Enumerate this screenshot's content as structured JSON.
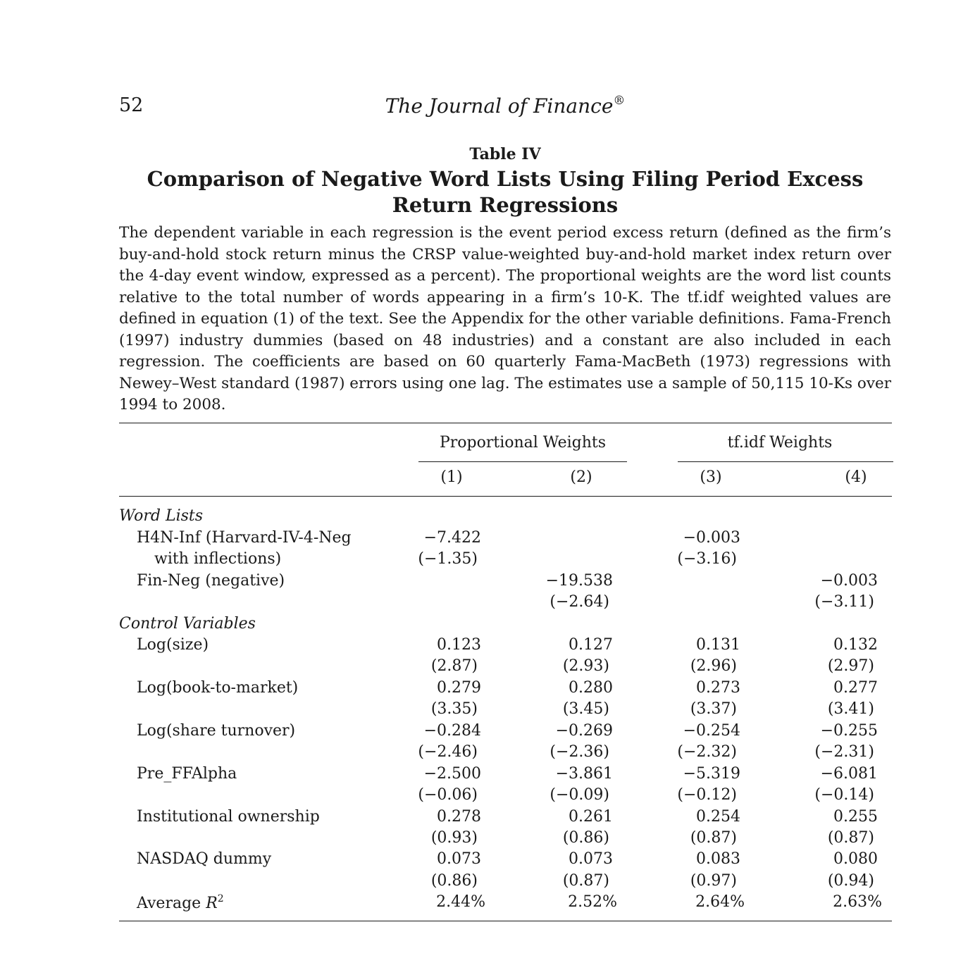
{
  "header": {
    "page_number": "52",
    "journal": "The Journal of Finance",
    "journal_mark": "®"
  },
  "table": {
    "label": "Table IV",
    "title": "Comparison of Negative Word Lists Using Filing Period Excess Return Regressions",
    "caption": "The dependent variable in each regression is the event period excess return (defined as the firm’s buy-and-hold stock return minus the CRSP value-weighted buy-and-hold market index return over the 4-day event window, expressed as a percent). The proportional weights are the word list counts relative to the total number of words appearing in a firm’s 10-K. The tf.idf weighted values are defined in equation (1) of the text. See the Appendix for the other variable definitions. Fama-French (1997) industry dummies (based on 48 industries) and a constant are also included in each regression. The coefficients are based on 60 quarterly Fama-MacBeth (1973) regressions with Newey–West standard (1987) errors using one lag. The estimates use a sample of 50,115 10-Ks over 1994 to 2008.",
    "group_headers": [
      "Proportional Weights",
      "tf.idf Weights"
    ],
    "columns": [
      "(1)",
      "(2)",
      "(3)",
      "(4)"
    ],
    "sections": {
      "word_lists": "Word Lists",
      "control_variables": "Control Variables"
    },
    "rows": {
      "h4n_line1": "H4N-Inf (Harvard-IV-4-Neg",
      "h4n_line2": "with inflections)",
      "h4n": {
        "coef": [
          "−7.422",
          "",
          "−0.003",
          ""
        ],
        "t": [
          "(−1.35)",
          "",
          "(−3.16)",
          ""
        ]
      },
      "finneg_label": "Fin-Neg (negative)",
      "finneg": {
        "coef": [
          "",
          "−19.538",
          "",
          "−0.003"
        ],
        "t": [
          "",
          "(−2.64)",
          "",
          "(−3.11)"
        ]
      },
      "logsize_label": "Log(size)",
      "logsize": {
        "coef": [
          "0.123",
          "0.127",
          "0.131",
          "0.132"
        ],
        "t": [
          "(2.87)",
          "(2.93)",
          "(2.96)",
          "(2.97)"
        ]
      },
      "logbm_label": "Log(book-to-market)",
      "logbm": {
        "coef": [
          "0.279",
          "0.280",
          "0.273",
          "0.277"
        ],
        "t": [
          "(3.35)",
          "(3.45)",
          "(3.37)",
          "(3.41)"
        ]
      },
      "logturn_label": "Log(share turnover)",
      "logturn": {
        "coef": [
          "−0.284",
          "−0.269",
          "−0.254",
          "−0.255"
        ],
        "t": [
          "(−2.46)",
          "(−2.36)",
          "(−2.32)",
          "(−2.31)"
        ]
      },
      "preff_label": "Pre_FFAlpha",
      "preff": {
        "coef": [
          "−2.500",
          "−3.861",
          "−5.319",
          "−6.081"
        ],
        "t": [
          "(−0.06)",
          "(−0.09)",
          "(−0.12)",
          "(−0.14)"
        ]
      },
      "inst_label": "Institutional ownership",
      "inst": {
        "coef": [
          "0.278",
          "0.261",
          "0.254",
          "0.255"
        ],
        "t": [
          "(0.93)",
          "(0.86)",
          "(0.87)",
          "(0.87)"
        ]
      },
      "nasdaq_label": "NASDAQ dummy",
      "nasdaq": {
        "coef": [
          "0.073",
          "0.073",
          "0.083",
          "0.080"
        ],
        "t": [
          "(0.86)",
          "(0.87)",
          "(0.97)",
          "(0.94)"
        ]
      },
      "r2_label_prefix": "Average ",
      "r2_symbol": "R",
      "r2_exp": "2",
      "r2": {
        "coef": [
          "2.44%",
          "2.52%",
          "2.64%",
          "2.63%"
        ]
      }
    }
  }
}
